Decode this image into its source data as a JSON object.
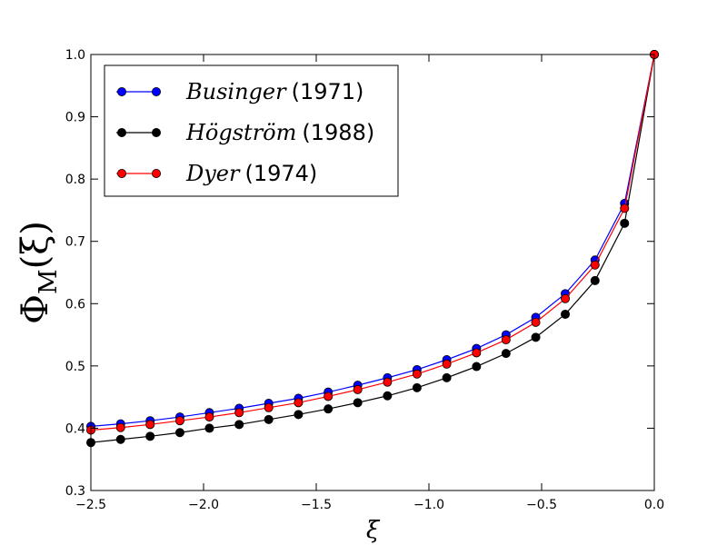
{
  "chart_data": {
    "type": "line",
    "xlabel": "ξ",
    "ylabel": "Φ_M(ξ)",
    "ylabel_main": "Φ",
    "ylabel_sub": "M",
    "ylabel_arg": "(ξ)",
    "xlim": [
      -2.5,
      0.0
    ],
    "ylim": [
      0.3,
      1.0
    ],
    "x_ticks": [
      -2.5,
      -2.0,
      -1.5,
      -1.0,
      -0.5,
      0.0
    ],
    "x_tick_labels": [
      "−2.5",
      "−2.0",
      "−1.5",
      "−1.0",
      "−0.5",
      "0.0"
    ],
    "y_ticks": [
      0.3,
      0.4,
      0.5,
      0.6,
      0.7,
      0.8,
      0.9,
      1.0
    ],
    "y_tick_labels": [
      "0.3",
      "0.4",
      "0.5",
      "0.6",
      "0.7",
      "0.8",
      "0.9",
      "1.0"
    ],
    "grid": false,
    "legend_position": "top-left",
    "x": [
      -2.5,
      -2.368,
      -2.237,
      -2.105,
      -1.974,
      -1.842,
      -1.711,
      -1.579,
      -1.447,
      -1.316,
      -1.184,
      -1.053,
      -0.921,
      -0.789,
      -0.658,
      -0.526,
      -0.395,
      -0.263,
      -0.132,
      0.0
    ],
    "series": [
      {
        "name": "Businger",
        "year": "(1971)",
        "color": "#0000ff",
        "values": [
          0.403,
          0.407,
          0.412,
          0.418,
          0.425,
          0.432,
          0.44,
          0.448,
          0.458,
          0.469,
          0.481,
          0.494,
          0.51,
          0.528,
          0.55,
          0.578,
          0.616,
          0.67,
          0.761,
          1.0
        ]
      },
      {
        "name": "Högström",
        "year": "(1988)",
        "color": "#000000",
        "values": [
          0.377,
          0.382,
          0.387,
          0.393,
          0.4,
          0.406,
          0.414,
          0.422,
          0.431,
          0.441,
          0.452,
          0.465,
          0.481,
          0.499,
          0.52,
          0.546,
          0.583,
          0.637,
          0.729,
          1.0
        ]
      },
      {
        "name": "Dyer",
        "year": "(1974)",
        "color": "#ff0000",
        "values": [
          0.397,
          0.401,
          0.406,
          0.412,
          0.418,
          0.425,
          0.433,
          0.441,
          0.451,
          0.462,
          0.474,
          0.487,
          0.503,
          0.521,
          0.542,
          0.57,
          0.608,
          0.662,
          0.753,
          1.0
        ]
      }
    ]
  }
}
